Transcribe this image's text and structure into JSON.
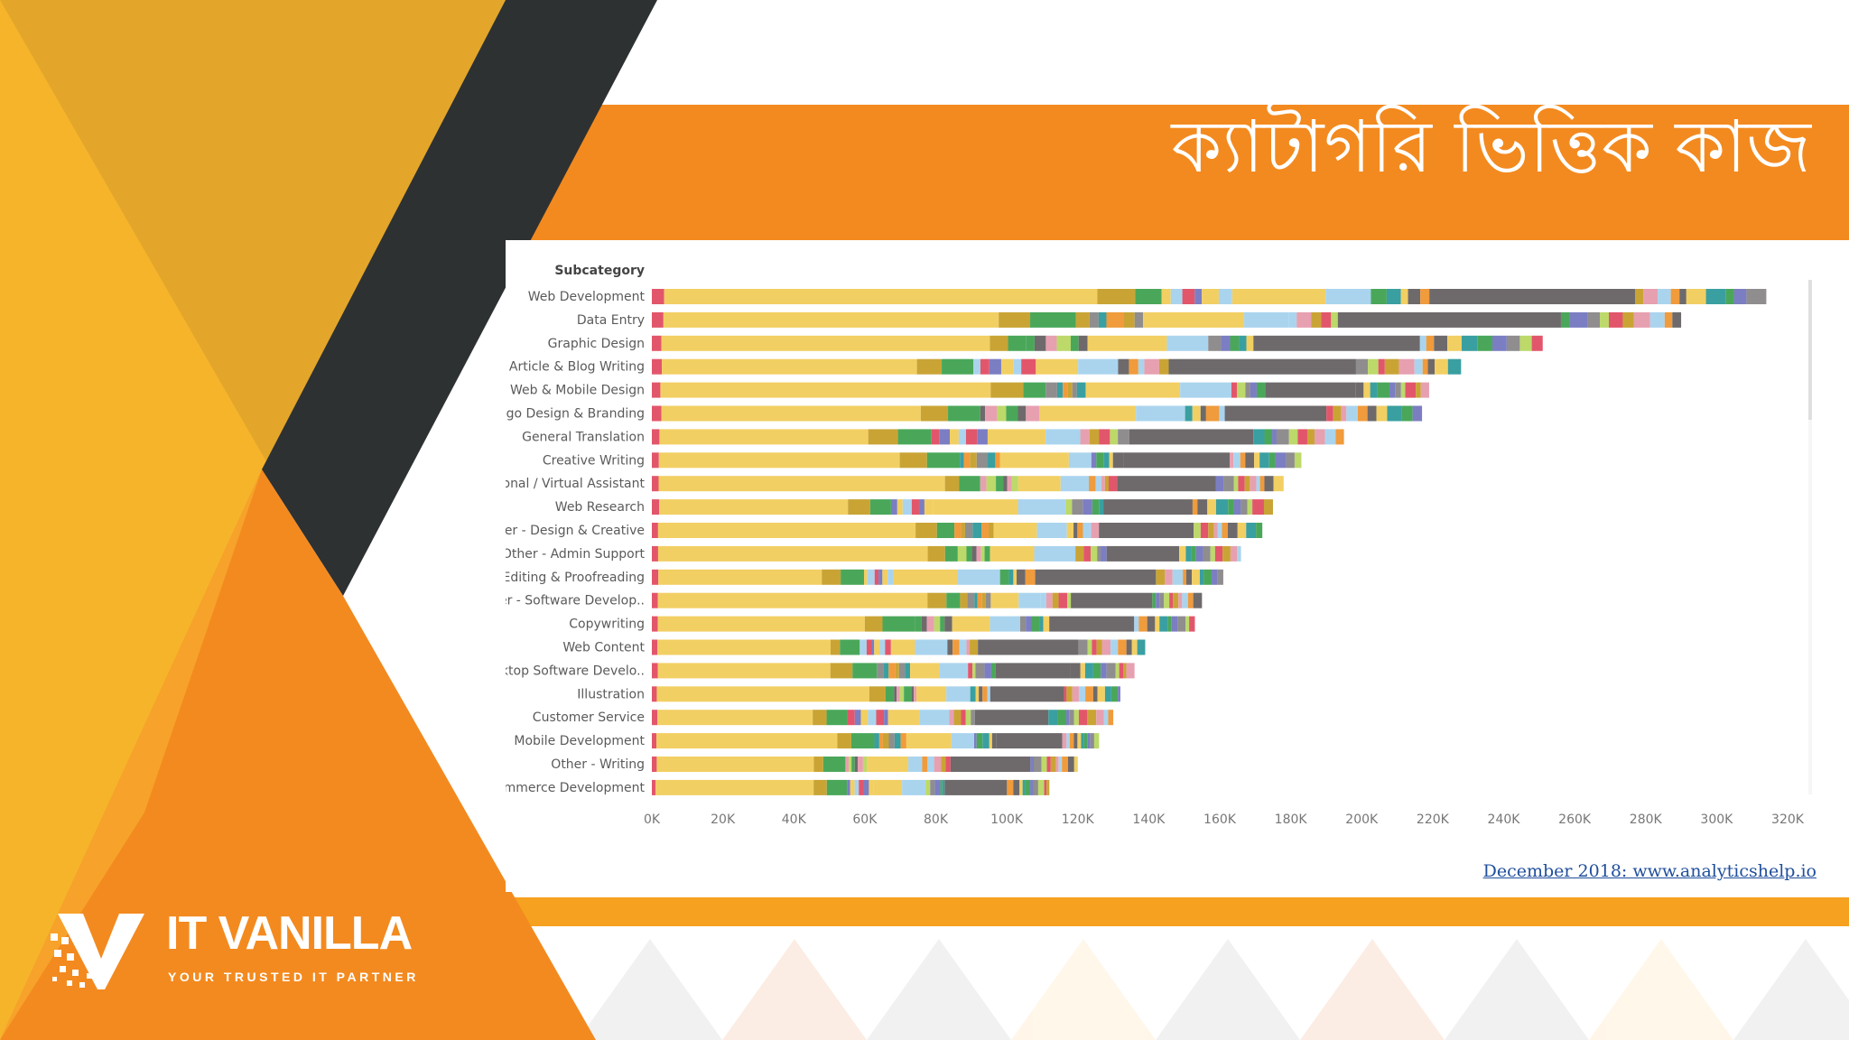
{
  "slide": {
    "title": "ক্যাটাগরি ভিত্তিক কাজ",
    "source_link": "December 2018: www.analyticshelp.io"
  },
  "logo": {
    "name": "IT VANILLA",
    "tagline": "YOUR TRUSTED IT PARTNER"
  },
  "colors": {
    "orange": "#F38A1F",
    "dark_slate": "#2E3132",
    "gold": "#E7A928",
    "orange_bar": "#F6A11F",
    "link_blue": "#1f4e9c"
  },
  "chart_data": {
    "type": "bar",
    "orientation": "horizontal",
    "stacked": true,
    "header": "Subcategory",
    "categories": [
      "Web Development",
      "Data Entry",
      "Graphic Design",
      "Article & Blog Writing",
      "Web & Mobile Design",
      "Logo Design & Branding",
      "General Translation",
      "Creative Writing",
      "Personal / Virtual Assistant",
      "Web Research",
      "Other - Design & Creative",
      "Other - Admin Support",
      "Editing & Proofreading",
      "Other - Software Develop..",
      "Copywriting",
      "Web Content",
      "Desktop Software Develo..",
      "Illustration",
      "Customer Service",
      "Mobile Development",
      "Other - Writing",
      "Ecommerce Development"
    ],
    "totals": [
      314000,
      290000,
      251000,
      228000,
      219000,
      217000,
      195000,
      183000,
      178000,
      175000,
      172000,
      166000,
      161000,
      155000,
      153000,
      139000,
      136000,
      132000,
      130000,
      126000,
      120000,
      112000
    ],
    "x_ticks": [
      "0K",
      "20K",
      "40K",
      "60K",
      "80K",
      "100K",
      "120K",
      "140K",
      "160K",
      "180K",
      "200K",
      "220K",
      "240K",
      "260K",
      "280K",
      "300K",
      "320K"
    ],
    "xlim": [
      0,
      320000
    ],
    "segment_colors": [
      "#f2cf63",
      "#c9a435",
      "#4aa75a",
      "#aad4ee",
      "#8f8d8e",
      "#6e6a6b",
      "#e2566b",
      "#3a9fa0",
      "#e7a0b0",
      "#7b7ec2",
      "#f09b3c",
      "#bcd96a"
    ]
  }
}
